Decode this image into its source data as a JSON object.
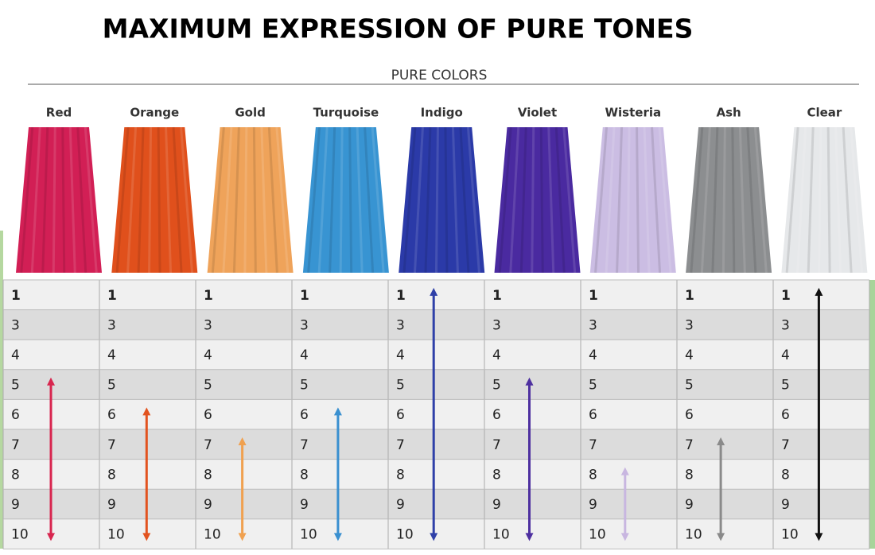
{
  "header": {
    "title": "MAXIMUM EXPRESSION OF PURE TONES",
    "subtitle": "PURE COLORS"
  },
  "levels": [
    1,
    3,
    4,
    5,
    6,
    7,
    8,
    9,
    10
  ],
  "columns": [
    {
      "name": "Red",
      "swatch_color": "#d21f55",
      "arrow_color": "#d8264f",
      "range": [
        5,
        10
      ]
    },
    {
      "name": "Orange",
      "swatch_color": "#e0501c",
      "arrow_color": "#e2531f",
      "range": [
        6,
        10
      ]
    },
    {
      "name": "Gold",
      "swatch_color": "#efa35a",
      "arrow_color": "#f0a150",
      "range": [
        7,
        10
      ]
    },
    {
      "name": "Turquoise",
      "swatch_color": "#3894d2",
      "arrow_color": "#3a90d0",
      "range": [
        6,
        10
      ]
    },
    {
      "name": "Indigo",
      "swatch_color": "#2b3aa8",
      "arrow_color": "#2f40a8",
      "range": [
        1,
        10
      ]
    },
    {
      "name": "Violet",
      "swatch_color": "#4a2aa0",
      "arrow_color": "#4e30a0",
      "range": [
        5,
        10
      ]
    },
    {
      "name": "Wisteria",
      "swatch_color": "#cbbde3",
      "arrow_color": "#c8b6e0",
      "range": [
        8,
        10
      ]
    },
    {
      "name": "Ash",
      "swatch_color": "#8c8e90",
      "arrow_color": "#8a8a8a",
      "range": [
        7,
        10
      ]
    },
    {
      "name": "Clear",
      "swatch_color": "#e6e8ea",
      "arrow_color": "#111111",
      "range": [
        1,
        10
      ]
    }
  ]
}
